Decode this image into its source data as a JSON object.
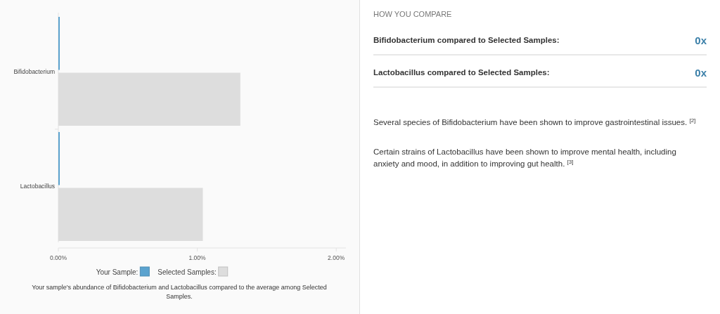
{
  "chart_data": [
    {
      "type": "bar",
      "orientation": "horizontal",
      "categories": [
        "Bifidobacterium",
        "Lactobacillus"
      ],
      "series": [
        {
          "name": "Your Sample:",
          "color": "#5ba3cf",
          "values": [
            0.01,
            0.01
          ]
        },
        {
          "name": "Selected Samples:",
          "color": "#dddddd",
          "values": [
            1.31,
            1.04
          ]
        }
      ],
      "xlim": [
        0,
        2.07
      ],
      "xticks": [
        {
          "value": 0,
          "label": "0.00%"
        },
        {
          "value": 1,
          "label": "1.00%"
        },
        {
          "value": 2,
          "label": "2.00%"
        }
      ],
      "grid": false,
      "legend": "bottom",
      "annotations": [
        "Your sample's abundance of Bifidobacterium and Lactobacillus compared to the average among Selected Samples."
      ]
    },
    {
      "type": "other",
      "title": "HOW YOU COMPARE",
      "annotations": [
        "Bifidobacterium compared to Selected Samples:",
        "0x",
        "Lactobacillus compared to Selected Samples:",
        "0x",
        "Several species of Bifidobacterium have been shown to improve gastrointestinal issues. $^{[2]}$",
        "Certain strains of Lactobacillus have been shown to improve mental health, including anxiety and mood, in addition to improving gut health. $^{[3]}$"
      ]
    }
  ]
}
